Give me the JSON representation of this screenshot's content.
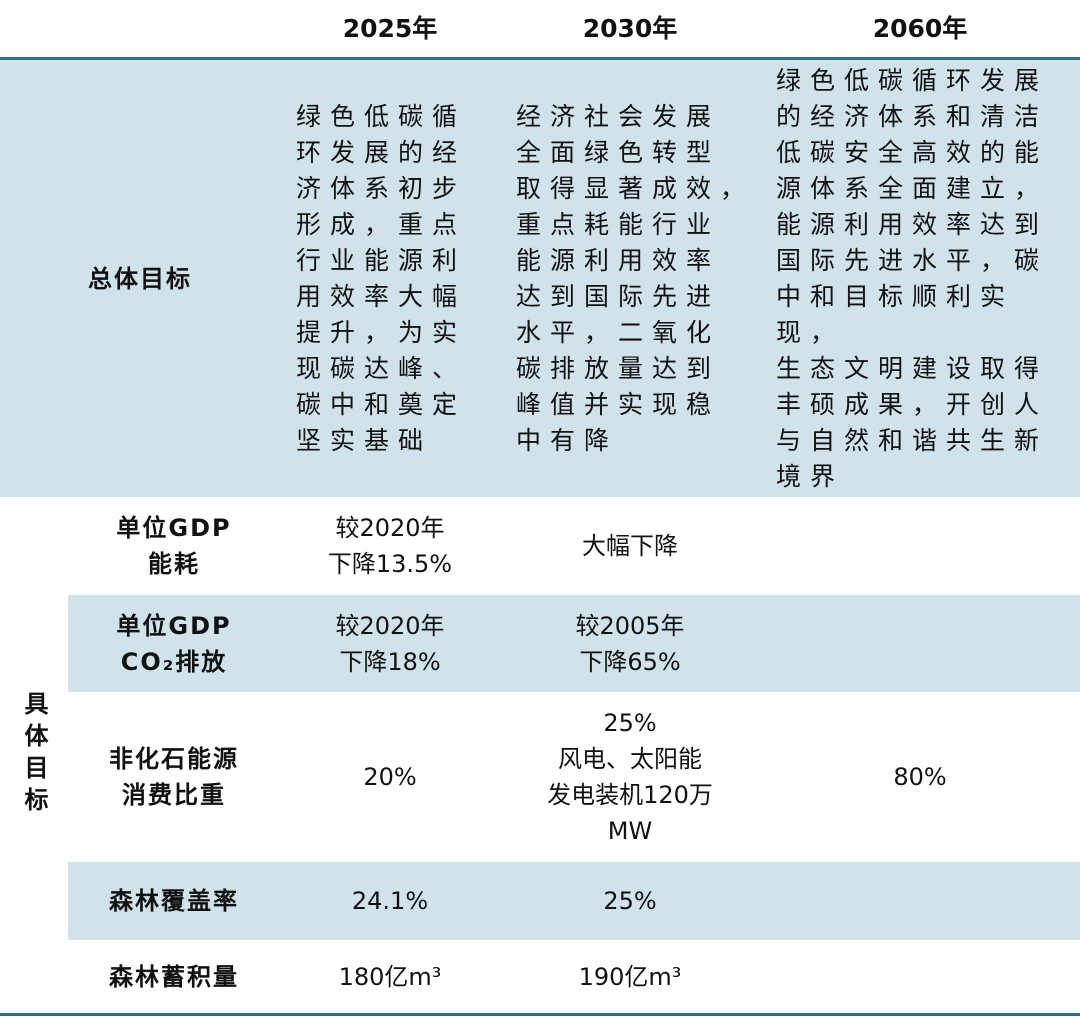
{
  "header": {
    "columns": [
      "2025年",
      "2030年",
      "2060年"
    ]
  },
  "overall": {
    "label": "总体目标",
    "cells": [
      [
        "绿色低碳循",
        "环发展的经",
        "济体系初步",
        "形成，重点",
        "行业能源利",
        "用效率大幅",
        "提升，为实",
        "现碳达峰、",
        "碳中和奠定",
        "坚实基础"
      ],
      [
        "经济社会发展",
        "全面绿色转型",
        "取得显著成效，",
        "重点耗能行业",
        "能源利用效率",
        "达到国际先进",
        "水平，二氧化",
        "碳排放量达到",
        "峰值并实现稳",
        "中有降"
      ],
      [
        "绿色低碳循环发展",
        "的经济体系和清洁",
        "低碳安全高效的能",
        "源体系全面建立，",
        "能源利用效率达到",
        "国际先进水平，碳",
        "中和目标顺利实现，",
        "生态文明建设取得",
        "丰硕成果，开创人",
        "与自然和谐共生新",
        "境界"
      ]
    ]
  },
  "specific": {
    "label": "具体目标",
    "rows": [
      {
        "label": [
          "单位GDP",
          "能耗"
        ],
        "cells": [
          [
            "较2020年",
            "下降13.5%"
          ],
          [
            "大幅下降"
          ],
          null
        ]
      },
      {
        "label": [
          "单位GDP",
          "CO₂排放"
        ],
        "cells": [
          [
            "较2020年",
            "下降18%"
          ],
          [
            "较2005年",
            "下降65%"
          ],
          null
        ]
      },
      {
        "label": [
          "非化石能源",
          "消费比重"
        ],
        "cells": [
          [
            "20%"
          ],
          [
            "25%",
            "风电、太阳能",
            "发电装机120万",
            "MW"
          ],
          [
            "80%"
          ]
        ]
      },
      {
        "label": [
          "森林覆盖率"
        ],
        "cells": [
          [
            "24.1%"
          ],
          [
            "25%"
          ],
          null
        ]
      },
      {
        "label": [
          "森林蓄积量"
        ],
        "cells": [
          [
            "180亿m³"
          ],
          [
            "190亿m³"
          ],
          null
        ]
      }
    ]
  }
}
